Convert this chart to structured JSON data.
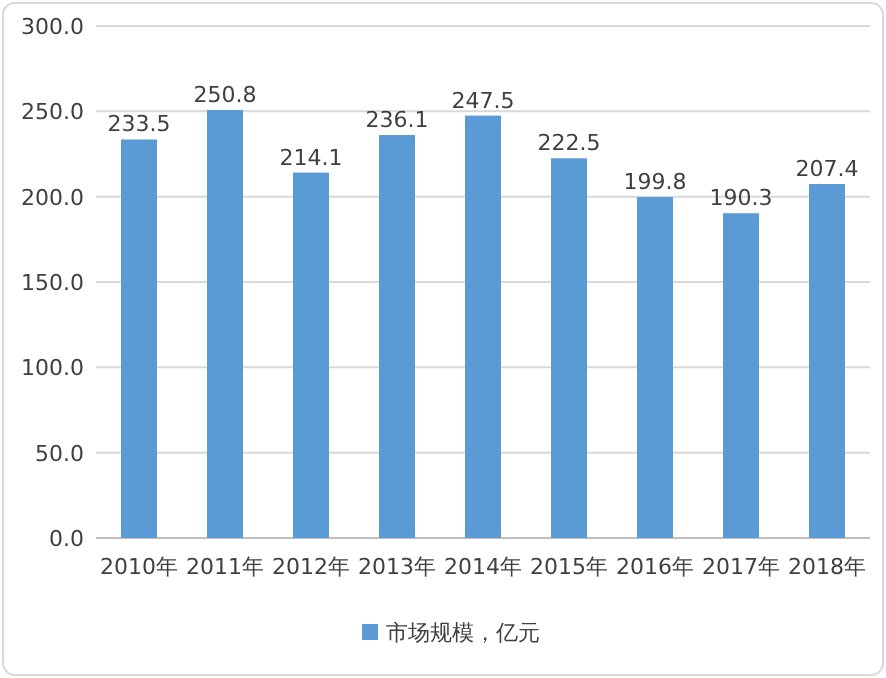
{
  "chart_data": {
    "type": "bar",
    "categories": [
      "2010年",
      "2011年",
      "2012年",
      "2013年",
      "2014年",
      "2015年",
      "2016年",
      "2017年",
      "2018年"
    ],
    "series": [
      {
        "name": "市场规模，亿元",
        "color": "#5b9bd5",
        "values": [
          233.5,
          250.8,
          214.1,
          236.1,
          247.5,
          222.5,
          199.8,
          190.3,
          207.4
        ]
      }
    ],
    "ylim": [
      0,
      300
    ],
    "yticks": [
      {
        "value": 0,
        "label": "0.0"
      },
      {
        "value": 50,
        "label": "50.0"
      },
      {
        "value": 100,
        "label": "100.0"
      },
      {
        "value": 150,
        "label": "150.0"
      },
      {
        "value": 200,
        "label": "200.0"
      },
      {
        "value": 250,
        "label": "250.0"
      },
      {
        "value": 300,
        "label": "300.0"
      }
    ],
    "grid": "y",
    "legend": "bottom",
    "data_labels": true
  }
}
